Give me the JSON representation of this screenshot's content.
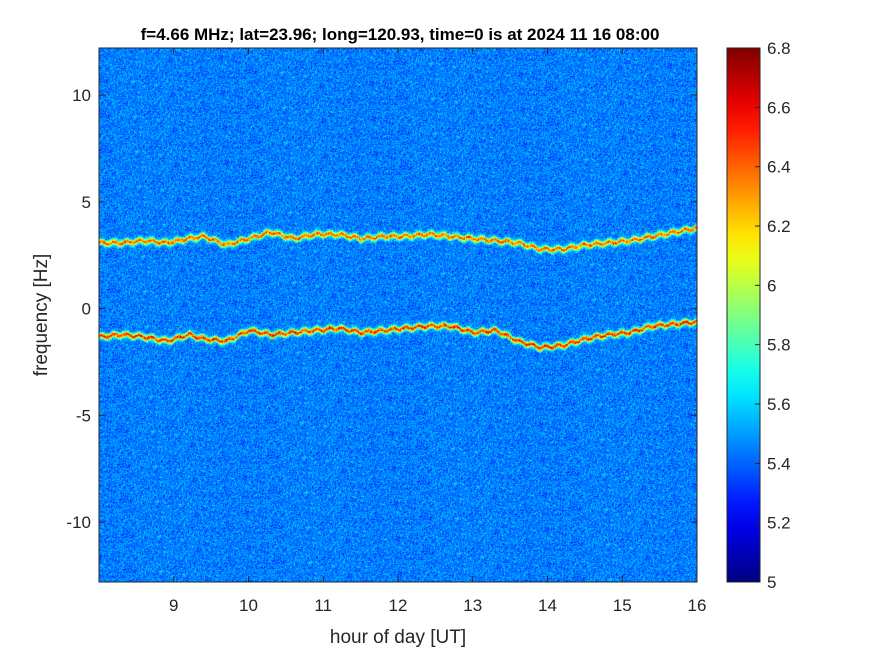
{
  "chart_data": {
    "type": "heatmap",
    "title": "f=4.66 MHz;  lat=23.96; long=120.93, time=0 is at 2024 11 16 08:00",
    "xlabel": "hour of day [UT]",
    "ylabel": "frequency [Hz]",
    "xlim": [
      8,
      16
    ],
    "ylim": [
      -12.8,
      12.2
    ],
    "xticks": [
      9,
      10,
      11,
      12,
      13,
      14,
      15,
      16
    ],
    "xtick_labels": [
      "9",
      "10",
      "11",
      "12",
      "13",
      "14",
      "15",
      "16"
    ],
    "yticks": [
      -10,
      -5,
      0,
      5,
      10
    ],
    "ytick_labels": [
      "-10",
      "-5",
      "0",
      "5",
      "10"
    ],
    "colorbar": {
      "range": [
        5,
        6.8
      ],
      "ticks": [
        5,
        5.2,
        5.4,
        5.6,
        5.8,
        6,
        6.2,
        6.4,
        6.6,
        6.8
      ],
      "tick_labels": [
        "5",
        "5.2",
        "5.4",
        "5.6",
        "5.8",
        "6",
        "6.2",
        "6.4",
        "6.6",
        "6.8"
      ],
      "colormap": "jet",
      "colors": [
        "#00008f",
        "#0000ff",
        "#00ffff",
        "#ffff00",
        "#ff0000",
        "#800000"
      ]
    },
    "background_level": 5.45,
    "series": [
      {
        "x": [
          8.0,
          8.3,
          8.6,
          8.9,
          9.2,
          9.4,
          9.7,
          10.0,
          10.3,
          10.6,
          10.9,
          11.2,
          11.5,
          11.8,
          12.1,
          12.4,
          12.7,
          13.0,
          13.3,
          13.6,
          13.9,
          14.2,
          14.5,
          14.8,
          15.1,
          15.4,
          15.7,
          16.0
        ],
        "values": [
          3.1,
          3.1,
          3.2,
          3.1,
          3.3,
          3.4,
          3.0,
          3.3,
          3.6,
          3.3,
          3.5,
          3.5,
          3.3,
          3.4,
          3.4,
          3.5,
          3.4,
          3.3,
          3.2,
          3.1,
          2.8,
          2.8,
          3.0,
          3.1,
          3.2,
          3.4,
          3.6,
          3.8
        ],
        "level": 6.5
      },
      {
        "x": [
          8.0,
          8.3,
          8.6,
          8.9,
          9.2,
          9.4,
          9.7,
          10.0,
          10.3,
          10.6,
          10.9,
          11.2,
          11.5,
          11.8,
          12.1,
          12.4,
          12.7,
          13.0,
          13.3,
          13.6,
          13.9,
          14.2,
          14.5,
          14.8,
          15.1,
          15.4,
          15.7,
          16.0
        ],
        "values": [
          -1.3,
          -1.2,
          -1.3,
          -1.5,
          -1.2,
          -1.4,
          -1.5,
          -1.0,
          -1.2,
          -1.1,
          -1.0,
          -0.9,
          -1.1,
          -1.0,
          -0.9,
          -0.8,
          -0.8,
          -1.1,
          -1.0,
          -1.5,
          -1.8,
          -1.7,
          -1.4,
          -1.2,
          -1.1,
          -0.8,
          -0.7,
          -0.6
        ],
        "level": 6.6
      }
    ]
  }
}
